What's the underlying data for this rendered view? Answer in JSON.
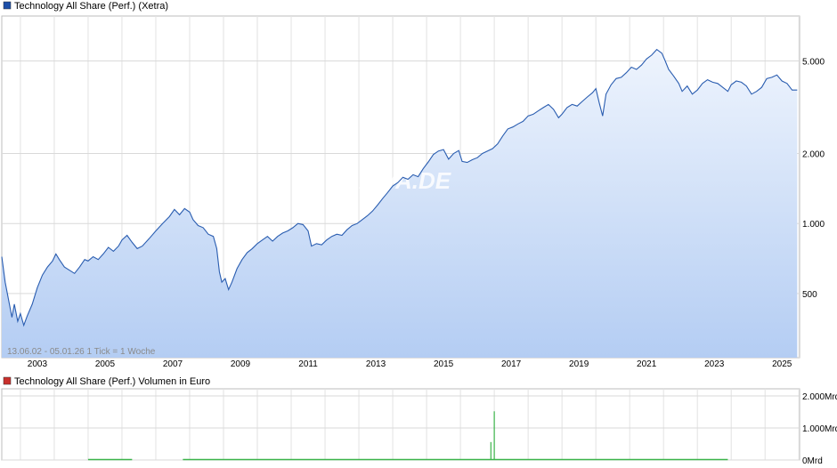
{
  "price_chart": {
    "legend_label": "Technology All Share (Perf.) (Xetra)",
    "legend_color": "#1c4fa8",
    "watermark": "ARIVA.DE",
    "range_note": "13.06.02 - 05.01.26     1 Tick = 1 Woche",
    "line_color": "#2a5db0",
    "fill_top_color": "#eef4fd",
    "fill_bottom_color": "#b4cdf3"
  },
  "volume_chart": {
    "legend_label": "Technology All Share (Perf.) Volumen in Euro",
    "legend_color": "#c9302c",
    "bar_color": "#3cb44b"
  },
  "chart_data": [
    {
      "type": "line",
      "scale": "log",
      "y_ticks": [
        {
          "value": 500,
          "label": "500"
        },
        {
          "value": 1000,
          "label": "1.000"
        },
        {
          "value": 2000,
          "label": "2.000"
        },
        {
          "value": 5000,
          "label": "5.000"
        }
      ],
      "x_ticks": [
        "2003",
        "2005",
        "2007",
        "2009",
        "2011",
        "2013",
        "2015",
        "2017",
        "2019",
        "2021",
        "2023",
        "2025"
      ],
      "x_range": [
        2002.45,
        2026.02
      ],
      "y_range": [
        265,
        7800
      ],
      "series": [
        {
          "values": [
            [
              2002.45,
              720
            ],
            [
              2002.55,
              560
            ],
            [
              2002.65,
              470
            ],
            [
              2002.75,
              395
            ],
            [
              2002.82,
              450
            ],
            [
              2002.92,
              380
            ],
            [
              2003.0,
              410
            ],
            [
              2003.1,
              365
            ],
            [
              2003.2,
              400
            ],
            [
              2003.35,
              450
            ],
            [
              2003.5,
              530
            ],
            [
              2003.65,
              600
            ],
            [
              2003.8,
              650
            ],
            [
              2003.95,
              690
            ],
            [
              2004.05,
              740
            ],
            [
              2004.15,
              700
            ],
            [
              2004.3,
              650
            ],
            [
              2004.45,
              630
            ],
            [
              2004.6,
              610
            ],
            [
              2004.75,
              650
            ],
            [
              2004.9,
              700
            ],
            [
              2005.0,
              690
            ],
            [
              2005.15,
              720
            ],
            [
              2005.3,
              700
            ],
            [
              2005.45,
              740
            ],
            [
              2005.6,
              790
            ],
            [
              2005.75,
              760
            ],
            [
              2005.9,
              800
            ],
            [
              2006.0,
              850
            ],
            [
              2006.15,
              890
            ],
            [
              2006.3,
              830
            ],
            [
              2006.45,
              780
            ],
            [
              2006.6,
              800
            ],
            [
              2006.8,
              860
            ],
            [
              2007.0,
              930
            ],
            [
              2007.2,
              1000
            ],
            [
              2007.4,
              1070
            ],
            [
              2007.55,
              1150
            ],
            [
              2007.7,
              1090
            ],
            [
              2007.85,
              1160
            ],
            [
              2008.0,
              1120
            ],
            [
              2008.1,
              1040
            ],
            [
              2008.25,
              980
            ],
            [
              2008.4,
              960
            ],
            [
              2008.55,
              900
            ],
            [
              2008.7,
              880
            ],
            [
              2008.8,
              780
            ],
            [
              2008.88,
              620
            ],
            [
              2008.95,
              560
            ],
            [
              2009.05,
              580
            ],
            [
              2009.15,
              520
            ],
            [
              2009.25,
              560
            ],
            [
              2009.4,
              640
            ],
            [
              2009.55,
              700
            ],
            [
              2009.7,
              750
            ],
            [
              2009.85,
              780
            ],
            [
              2010.0,
              820
            ],
            [
              2010.15,
              850
            ],
            [
              2010.3,
              880
            ],
            [
              2010.45,
              840
            ],
            [
              2010.6,
              880
            ],
            [
              2010.75,
              910
            ],
            [
              2010.9,
              930
            ],
            [
              2011.05,
              960
            ],
            [
              2011.2,
              1000
            ],
            [
              2011.35,
              990
            ],
            [
              2011.5,
              930
            ],
            [
              2011.6,
              800
            ],
            [
              2011.75,
              820
            ],
            [
              2011.9,
              810
            ],
            [
              2012.05,
              850
            ],
            [
              2012.2,
              880
            ],
            [
              2012.35,
              900
            ],
            [
              2012.5,
              890
            ],
            [
              2012.65,
              940
            ],
            [
              2012.8,
              980
            ],
            [
              2012.95,
              1000
            ],
            [
              2013.1,
              1040
            ],
            [
              2013.25,
              1080
            ],
            [
              2013.4,
              1130
            ],
            [
              2013.55,
              1200
            ],
            [
              2013.7,
              1280
            ],
            [
              2013.85,
              1360
            ],
            [
              2014.0,
              1450
            ],
            [
              2014.15,
              1500
            ],
            [
              2014.3,
              1580
            ],
            [
              2014.45,
              1550
            ],
            [
              2014.6,
              1620
            ],
            [
              2014.75,
              1590
            ],
            [
              2014.9,
              1720
            ],
            [
              2015.05,
              1840
            ],
            [
              2015.2,
              1980
            ],
            [
              2015.35,
              2050
            ],
            [
              2015.5,
              2080
            ],
            [
              2015.65,
              1890
            ],
            [
              2015.8,
              2000
            ],
            [
              2015.95,
              2060
            ],
            [
              2016.05,
              1850
            ],
            [
              2016.2,
              1830
            ],
            [
              2016.35,
              1880
            ],
            [
              2016.5,
              1920
            ],
            [
              2016.65,
              2000
            ],
            [
              2016.8,
              2050
            ],
            [
              2016.95,
              2100
            ],
            [
              2017.1,
              2200
            ],
            [
              2017.25,
              2380
            ],
            [
              2017.4,
              2550
            ],
            [
              2017.55,
              2600
            ],
            [
              2017.7,
              2680
            ],
            [
              2017.85,
              2750
            ],
            [
              2018.0,
              2900
            ],
            [
              2018.15,
              2950
            ],
            [
              2018.3,
              3050
            ],
            [
              2018.45,
              3150
            ],
            [
              2018.6,
              3250
            ],
            [
              2018.75,
              3100
            ],
            [
              2018.9,
              2850
            ],
            [
              2019.0,
              2950
            ],
            [
              2019.15,
              3150
            ],
            [
              2019.3,
              3250
            ],
            [
              2019.45,
              3200
            ],
            [
              2019.6,
              3350
            ],
            [
              2019.75,
              3500
            ],
            [
              2019.9,
              3650
            ],
            [
              2020.0,
              3800
            ],
            [
              2020.1,
              3300
            ],
            [
              2020.2,
              2900
            ],
            [
              2020.3,
              3600
            ],
            [
              2020.45,
              3950
            ],
            [
              2020.6,
              4200
            ],
            [
              2020.75,
              4250
            ],
            [
              2020.9,
              4450
            ],
            [
              2021.05,
              4700
            ],
            [
              2021.2,
              4600
            ],
            [
              2021.35,
              4800
            ],
            [
              2021.5,
              5100
            ],
            [
              2021.65,
              5300
            ],
            [
              2021.8,
              5600
            ],
            [
              2021.95,
              5400
            ],
            [
              2022.05,
              5000
            ],
            [
              2022.15,
              4600
            ],
            [
              2022.3,
              4300
            ],
            [
              2022.45,
              4000
            ],
            [
              2022.55,
              3700
            ],
            [
              2022.7,
              3900
            ],
            [
              2022.85,
              3600
            ],
            [
              2023.0,
              3750
            ],
            [
              2023.15,
              4000
            ],
            [
              2023.3,
              4150
            ],
            [
              2023.45,
              4050
            ],
            [
              2023.6,
              4000
            ],
            [
              2023.75,
              3850
            ],
            [
              2023.9,
              3700
            ],
            [
              2024.0,
              3950
            ],
            [
              2024.15,
              4100
            ],
            [
              2024.3,
              4050
            ],
            [
              2024.45,
              3900
            ],
            [
              2024.6,
              3600
            ],
            [
              2024.75,
              3700
            ],
            [
              2024.9,
              3850
            ],
            [
              2025.05,
              4200
            ],
            [
              2025.2,
              4250
            ],
            [
              2025.35,
              4350
            ],
            [
              2025.5,
              4100
            ],
            [
              2025.65,
              4000
            ],
            [
              2025.8,
              3750
            ],
            [
              2025.95,
              3750
            ]
          ]
        }
      ]
    },
    {
      "type": "bar",
      "y_ticks": [
        {
          "value": 0,
          "label": "0Mrd"
        },
        {
          "value": 1000,
          "label": "1.000Mrd"
        },
        {
          "value": 2000,
          "label": "2.000Mrd"
        }
      ],
      "y_range": [
        0,
        2000
      ],
      "spikes": [
        [
          2016.9,
          560
        ],
        [
          2017.0,
          1520
        ]
      ],
      "baseline_ranges": [
        [
          2005.0,
          2006.3
        ],
        [
          2007.8,
          2023.9
        ]
      ]
    }
  ]
}
